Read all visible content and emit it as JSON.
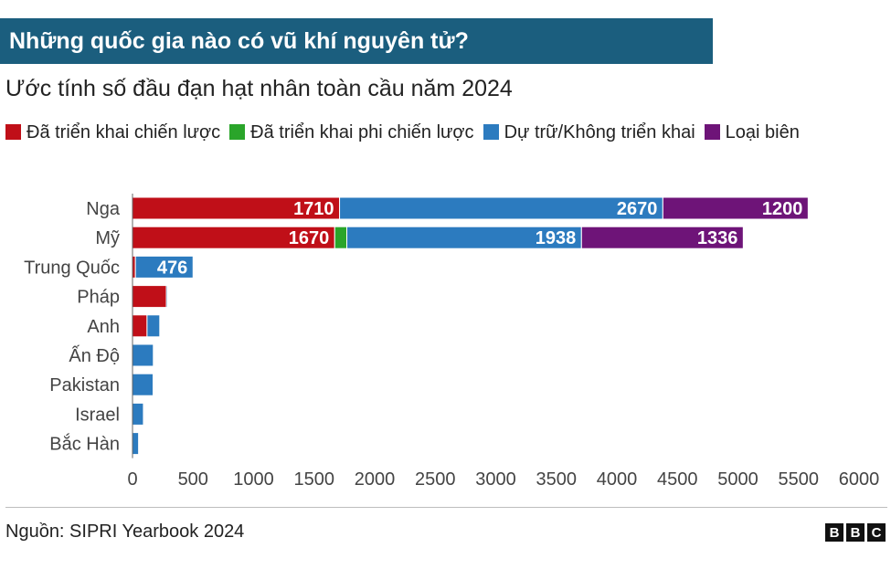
{
  "header": {
    "title": "Những quốc gia nào có vũ khí nguyên tử?",
    "subtitle": "Ước tính số đầu đạn hạt nhân toàn cầu năm 2024"
  },
  "chart_data": {
    "type": "bar",
    "orientation": "horizontal",
    "stacked": true,
    "categories": [
      "Nga",
      "Mỹ",
      "Trung Quốc",
      "Pháp",
      "Anh",
      "Ấn Độ",
      "Pakistan",
      "Israel",
      "Bắc Hàn"
    ],
    "series": [
      {
        "name": "Đã triển khai chiến lược",
        "color": "#c00f18",
        "values": [
          1710,
          1670,
          24,
          280,
          120,
          0,
          0,
          0,
          0
        ],
        "labels": [
          "1710",
          "1670",
          "",
          "",
          "",
          "",
          "",
          "",
          ""
        ]
      },
      {
        "name": "Đã triển khai phi chiến lược",
        "color": "#2aa52a",
        "values": [
          0,
          100,
          0,
          0,
          0,
          0,
          0,
          0,
          0
        ],
        "labels": [
          "",
          "",
          "",
          "",
          "",
          "",
          "",
          "",
          ""
        ]
      },
      {
        "name": "Dự trữ/Không triển khai",
        "color": "#2c7bbf",
        "values": [
          2670,
          1938,
          476,
          10,
          105,
          172,
          170,
          90,
          50
        ],
        "labels": [
          "2670",
          "1938",
          "476",
          "",
          "",
          "",
          "",
          "",
          ""
        ]
      },
      {
        "name": "Loại biên",
        "color": "#6e1478",
        "values": [
          1200,
          1336,
          0,
          0,
          0,
          0,
          0,
          0,
          0
        ],
        "labels": [
          "1200",
          "1336",
          "",
          "",
          "",
          "",
          "",
          "",
          ""
        ]
      }
    ],
    "xlim": [
      0,
      6000
    ],
    "xticks": [
      "0",
      "500",
      "1000",
      "1500",
      "2000",
      "2500",
      "3000",
      "3500",
      "4000",
      "4500",
      "5000",
      "5500",
      "6000"
    ],
    "grid": false,
    "legend_position": "top"
  },
  "footer": {
    "source": "Nguồn: SIPRI Yearbook 2024",
    "logo_letters": [
      "B",
      "B",
      "C"
    ]
  }
}
